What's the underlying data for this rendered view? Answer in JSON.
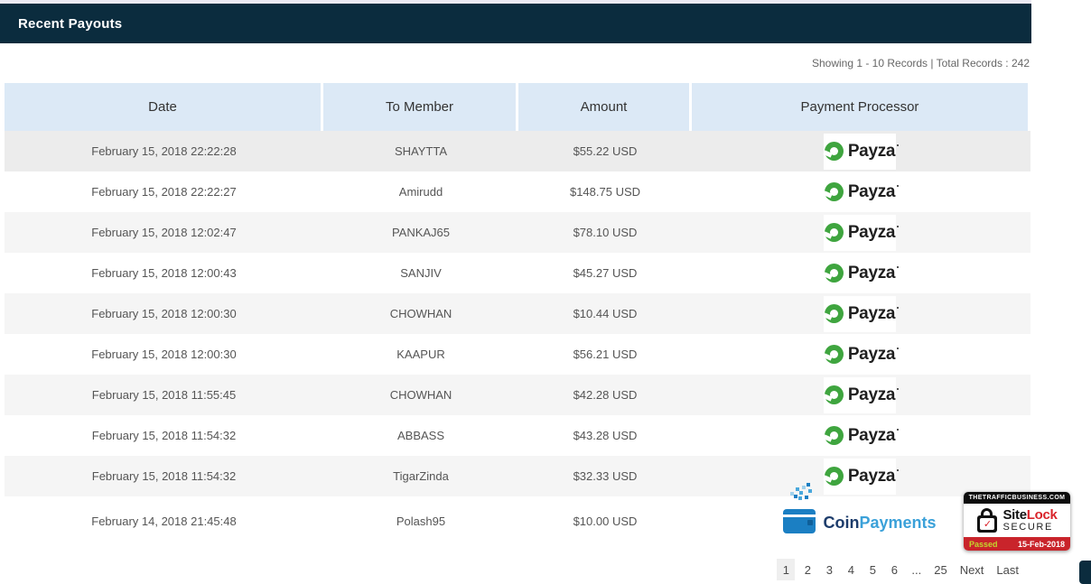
{
  "panel": {
    "title": "Recent Payouts"
  },
  "records_summary": "Showing 1 - 10 Records | Total Records : 242",
  "table": {
    "columns": [
      "Date",
      "To Member",
      "Amount",
      "Payment Processor"
    ],
    "rows": [
      {
        "date": "February 15, 2018 22:22:28",
        "member": "SHAYTTA",
        "amount": "$55.22 USD",
        "processor": "Payza"
      },
      {
        "date": "February 15, 2018 22:22:27",
        "member": "Amirudd",
        "amount": "$148.75 USD",
        "processor": "Payza"
      },
      {
        "date": "February 15, 2018 12:02:47",
        "member": "PANKAJ65",
        "amount": "$78.10 USD",
        "processor": "Payza"
      },
      {
        "date": "February 15, 2018 12:00:43",
        "member": "SANJIV",
        "amount": "$45.27 USD",
        "processor": "Payza"
      },
      {
        "date": "February 15, 2018 12:00:30",
        "member": "CHOWHAN",
        "amount": "$10.44 USD",
        "processor": "Payza"
      },
      {
        "date": "February 15, 2018 12:00:30",
        "member": "KAAPUR",
        "amount": "$56.21 USD",
        "processor": "Payza"
      },
      {
        "date": "February 15, 2018 11:55:45",
        "member": "CHOWHAN",
        "amount": "$42.28 USD",
        "processor": "Payza"
      },
      {
        "date": "February 15, 2018 11:54:32",
        "member": "ABBASS",
        "amount": "$43.28 USD",
        "processor": "Payza"
      },
      {
        "date": "February 15, 2018 11:54:32",
        "member": "TigarZinda",
        "amount": "$32.33 USD",
        "processor": "Payza"
      },
      {
        "date": "February 14, 2018 21:45:48",
        "member": "Polash95",
        "amount": "$10.00 USD",
        "processor": "CoinPayments"
      }
    ]
  },
  "processors": {
    "payza_label": "Payza",
    "coinpayments_coin": "Coin",
    "coinpayments_payments": "Payments"
  },
  "pagination": {
    "pages": [
      "1",
      "2",
      "3",
      "4",
      "5",
      "6",
      "...",
      "25"
    ],
    "active": "1",
    "next_label": "Next",
    "last_label": "Last"
  },
  "sitelock": {
    "site_name": "THETRAFFICBUSINESS.COM",
    "brand_site": "Site",
    "brand_lock": "Lock",
    "secure_label": "SECURE",
    "passed_label": "Passed",
    "scan_date": "15-Feb-2018",
    "check_glyph": "✓"
  },
  "colors": {
    "navy": "#0b2c3e",
    "table_header_blue": "#dce9f6",
    "row_gray": "#f5f5f5",
    "payza_green": "#3fa53f",
    "coin_dark_blue": "#1d3c6b",
    "coin_light_blue": "#3ba1d9",
    "sitelock_red": "#c9242b",
    "passed_green": "#c3d82d"
  }
}
